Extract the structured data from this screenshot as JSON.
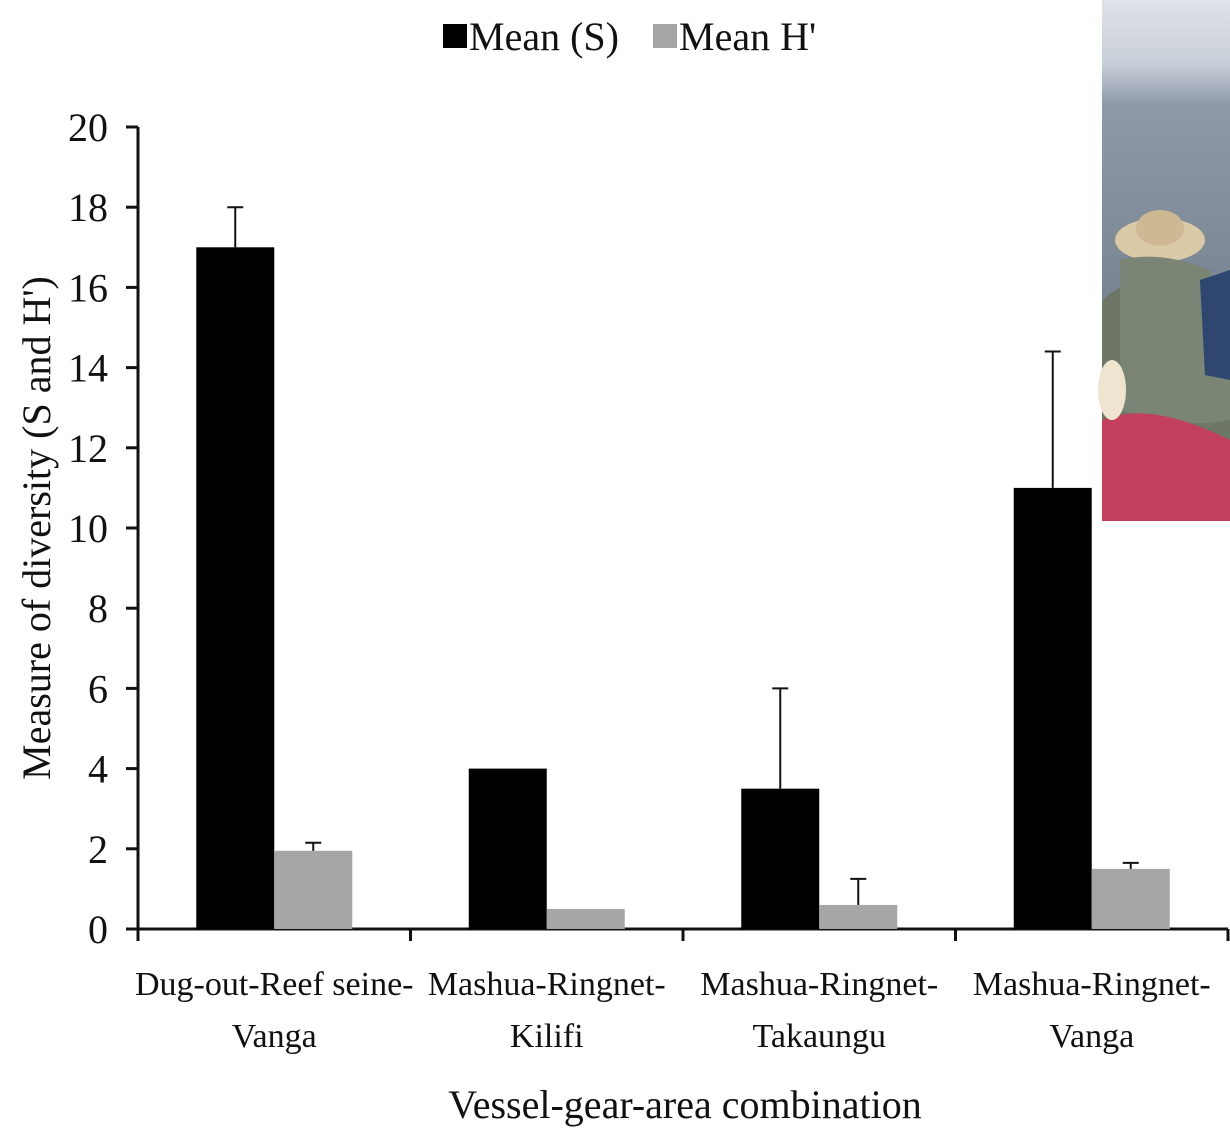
{
  "chart_data": {
    "type": "bar",
    "categories": [
      [
        "Dug-out-Reef seine-",
        "Vanga"
      ],
      [
        "Mashua-Ringnet-",
        "Kilifi"
      ],
      [
        "Mashua-Ringnet-",
        "Takaungu"
      ],
      [
        "Mashua-Ringnet-",
        "Vanga"
      ]
    ],
    "series": [
      {
        "name": "Mean (S)",
        "color": "#000000",
        "values": [
          17,
          4,
          3.5,
          11
        ],
        "error": [
          1,
          0,
          2.5,
          3.4
        ]
      },
      {
        "name": "Mean H'",
        "color": "#a6a6a6",
        "values": [
          1.95,
          0.5,
          0.6,
          1.5
        ],
        "error": [
          0.2,
          0,
          0.65,
          0.15
        ]
      }
    ],
    "xlabel": "Vessel-gear-area combination",
    "ylabel": "Measure of diversity (S and H')",
    "ylim": [
      0,
      20
    ],
    "yticks": [
      0,
      2,
      4,
      6,
      8,
      10,
      12,
      14,
      16,
      18,
      20
    ],
    "grid": false,
    "legend_position": "top-center"
  },
  "photo": {
    "icon": "fishermen-boat-photo",
    "sea_color": "#7d8a9a",
    "sky_color": "#e9ebef"
  }
}
